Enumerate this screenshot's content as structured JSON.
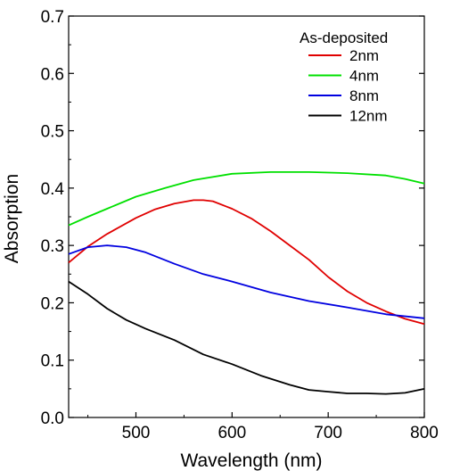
{
  "chart_data": {
    "type": "line",
    "xlabel": "Wavelength (nm)",
    "ylabel": "Absorption",
    "xlim": [
      430,
      800
    ],
    "ylim": [
      0.0,
      0.7
    ],
    "xticks": [
      500,
      600,
      700,
      800
    ],
    "xtick_labels": [
      "500",
      "600",
      "700",
      "800"
    ],
    "yticks": [
      0.0,
      0.1,
      0.2,
      0.3,
      0.4,
      0.5,
      0.6,
      0.7
    ],
    "ytick_labels": [
      "0.0",
      "0.1",
      "0.2",
      "0.3",
      "0.4",
      "0.5",
      "0.6",
      "0.7"
    ],
    "grid": false,
    "legend": {
      "title": "As-deposited",
      "position": "top-right"
    },
    "series": [
      {
        "name": "2nm",
        "color": "#e00000",
        "x": [
          430,
          450,
          470,
          500,
          520,
          540,
          560,
          570,
          580,
          600,
          620,
          640,
          660,
          680,
          700,
          720,
          740,
          760,
          780,
          800
        ],
        "y": [
          0.27,
          0.298,
          0.32,
          0.348,
          0.363,
          0.373,
          0.379,
          0.379,
          0.377,
          0.364,
          0.347,
          0.325,
          0.3,
          0.275,
          0.245,
          0.22,
          0.2,
          0.185,
          0.172,
          0.163
        ]
      },
      {
        "name": "4nm",
        "color": "#00e000",
        "x": [
          430,
          450,
          470,
          500,
          530,
          560,
          600,
          640,
          680,
          720,
          760,
          780,
          800
        ],
        "y": [
          0.335,
          0.35,
          0.364,
          0.385,
          0.4,
          0.414,
          0.425,
          0.428,
          0.428,
          0.426,
          0.422,
          0.416,
          0.408
        ]
      },
      {
        "name": "8nm",
        "color": "#0000e0",
        "x": [
          430,
          450,
          470,
          490,
          510,
          540,
          570,
          600,
          640,
          680,
          720,
          760,
          800
        ],
        "y": [
          0.285,
          0.297,
          0.3,
          0.297,
          0.288,
          0.268,
          0.25,
          0.237,
          0.218,
          0.203,
          0.192,
          0.18,
          0.173
        ]
      },
      {
        "name": "12nm",
        "color": "#000000",
        "x": [
          430,
          450,
          470,
          490,
          510,
          540,
          570,
          600,
          630,
          660,
          680,
          700,
          720,
          740,
          760,
          780,
          800
        ],
        "y": [
          0.237,
          0.215,
          0.19,
          0.17,
          0.155,
          0.135,
          0.11,
          0.093,
          0.073,
          0.057,
          0.048,
          0.045,
          0.042,
          0.042,
          0.041,
          0.043,
          0.05
        ]
      }
    ]
  }
}
